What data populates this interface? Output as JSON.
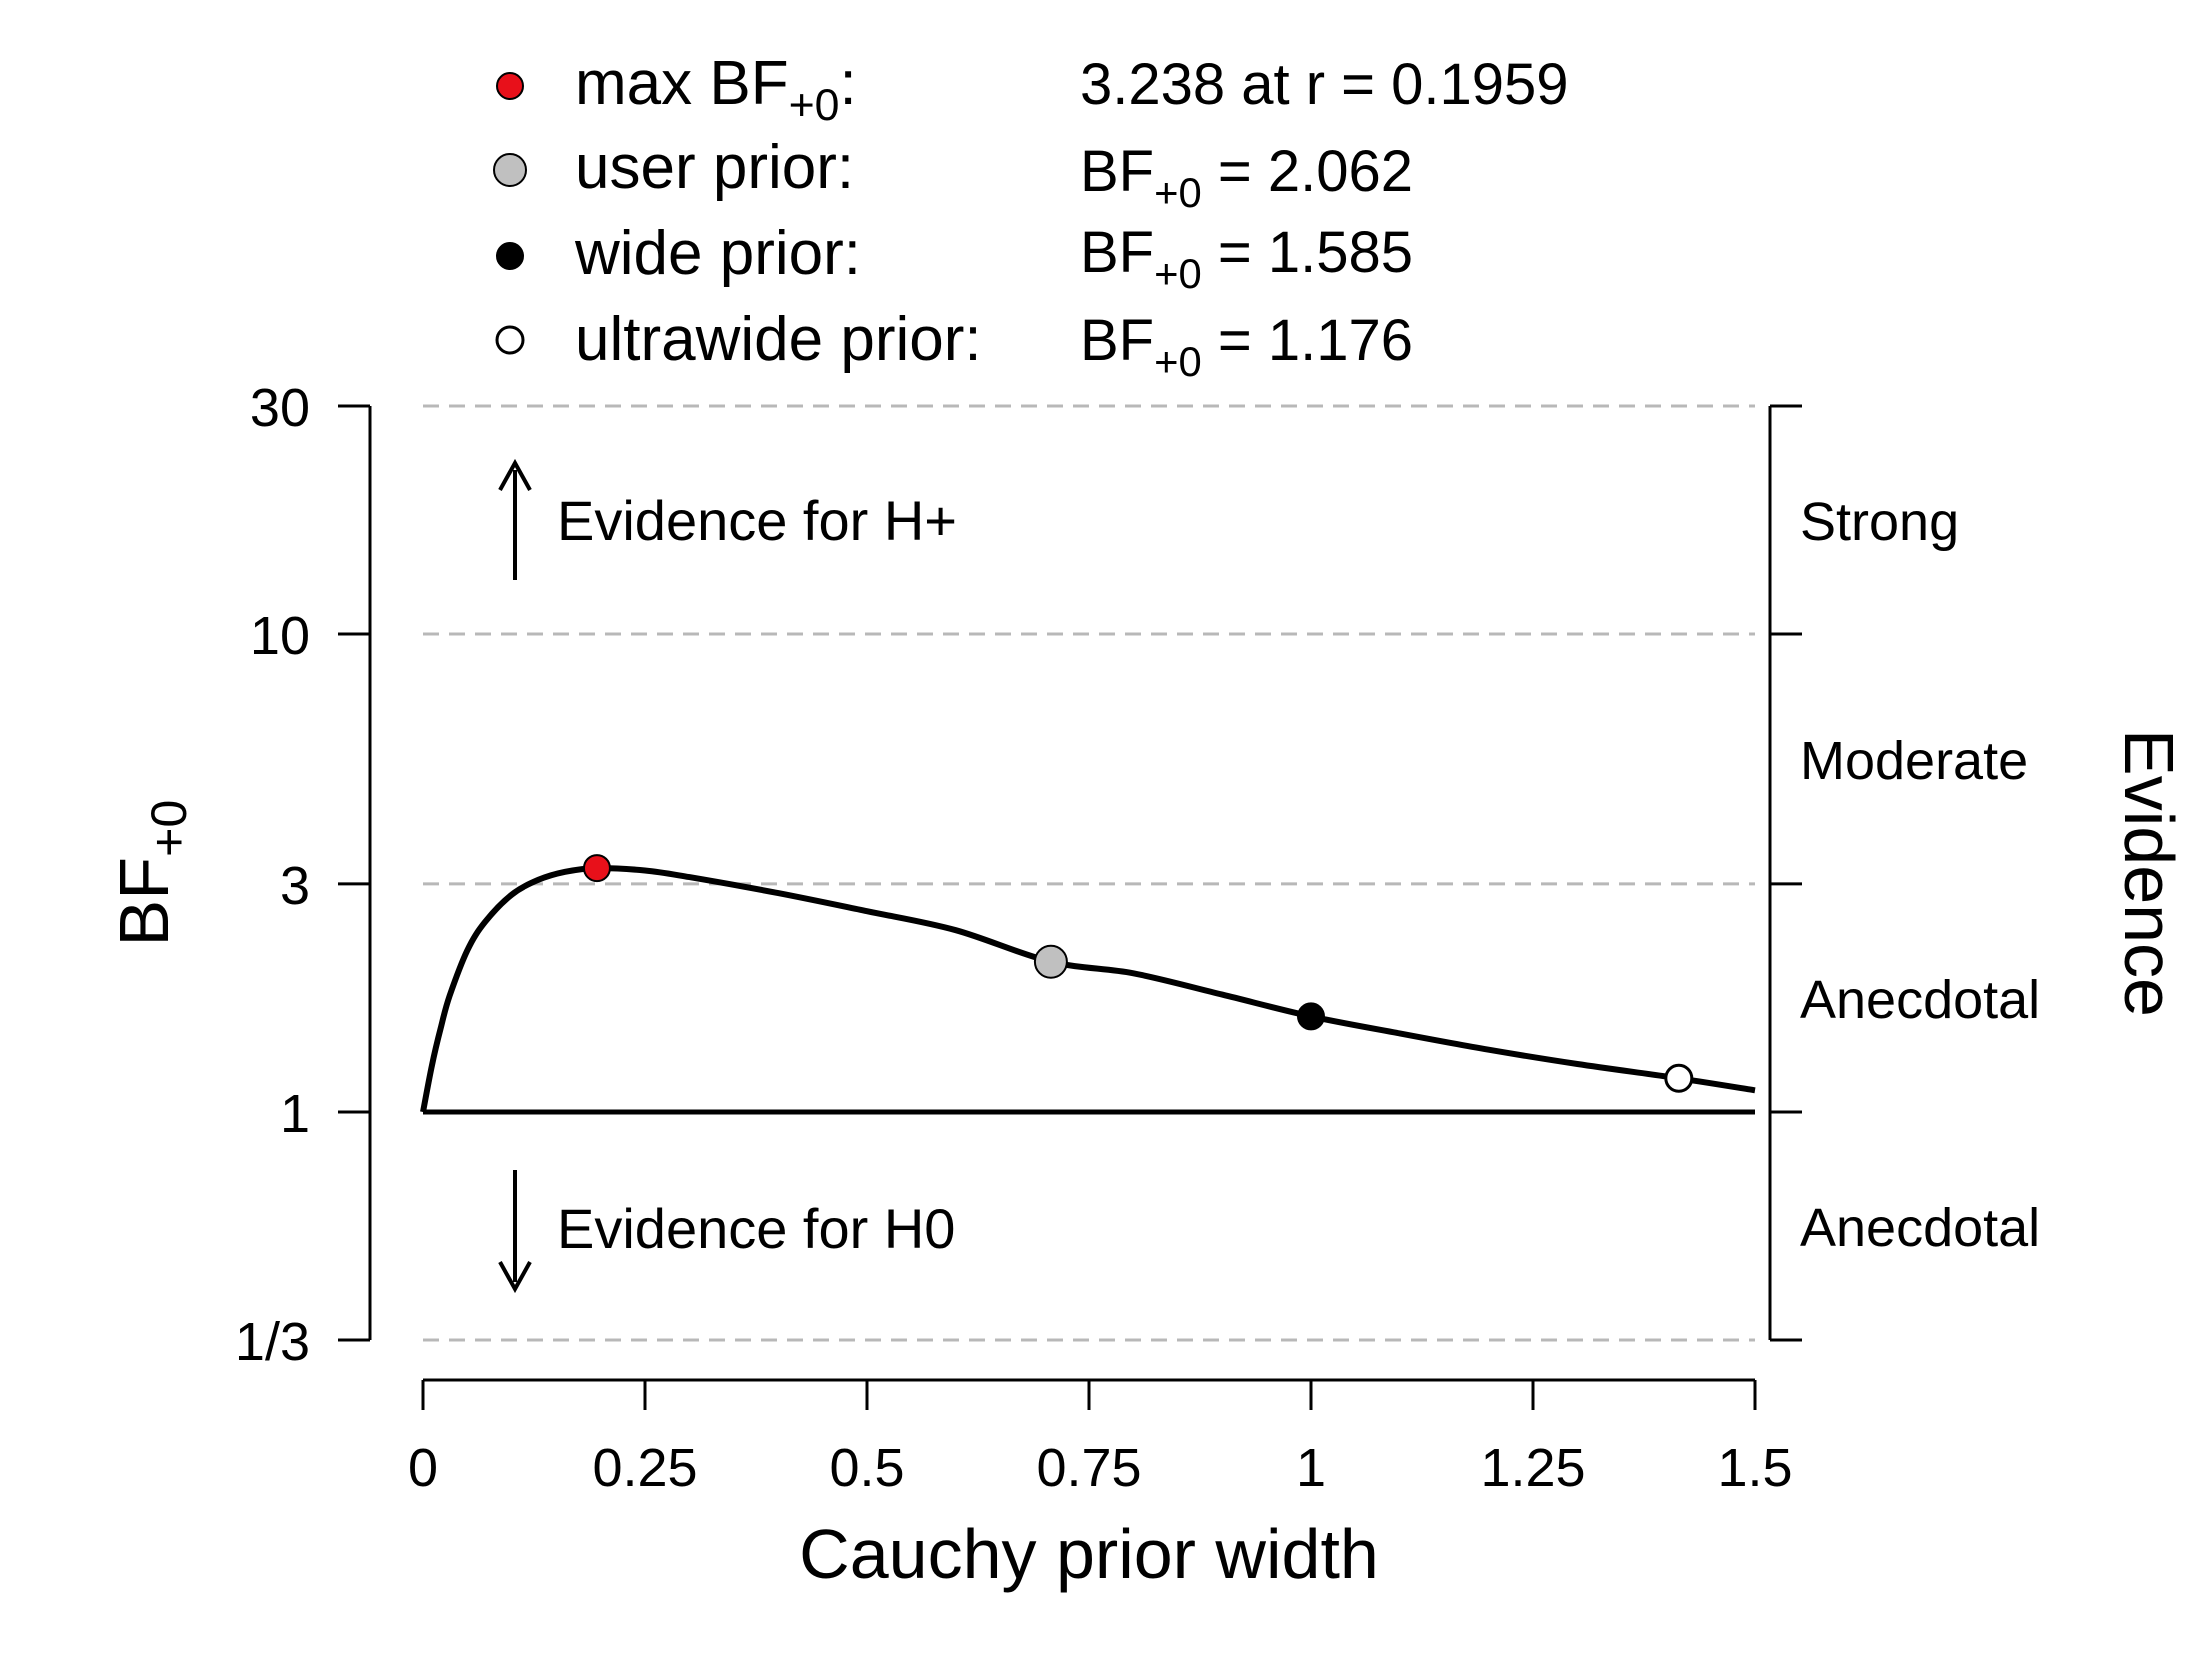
{
  "chart_data": {
    "type": "line",
    "title": "",
    "xlabel": "Cauchy prior width",
    "ylabel": {
      "base": "BF",
      "subscript": "+0"
    },
    "evidence_label": "Evidence",
    "y_scale": "log",
    "xlim": [
      0,
      1.5
    ],
    "ylim": [
      0.3333,
      30
    ],
    "x_ticks": [
      {
        "value": 0,
        "label": "0"
      },
      {
        "value": 0.25,
        "label": "0.25"
      },
      {
        "value": 0.5,
        "label": "0.5"
      },
      {
        "value": 0.75,
        "label": "0.75"
      },
      {
        "value": 1,
        "label": "1"
      },
      {
        "value": 1.25,
        "label": "1.25"
      },
      {
        "value": 1.5,
        "label": "1.5"
      }
    ],
    "y_ticks": [
      {
        "value": 30,
        "label": "30"
      },
      {
        "value": 10,
        "label": "10"
      },
      {
        "value": 3,
        "label": "3"
      },
      {
        "value": 1,
        "label": "1"
      },
      {
        "value": 0.3333,
        "label": "1/3"
      }
    ],
    "gridlines": "dashed at 30, 10, 3, 1/3",
    "evidence_categories": [
      {
        "label": "Strong",
        "range": [
          10,
          30
        ]
      },
      {
        "label": "Moderate",
        "range": [
          3,
          10
        ]
      },
      {
        "label": "Anecdotal",
        "range": [
          1,
          3
        ]
      },
      {
        "label": "Anecdotal",
        "range": [
          0.3333,
          1
        ]
      }
    ],
    "annotations": [
      {
        "text": "Evidence for H+",
        "direction": "up"
      },
      {
        "text": "Evidence for H0",
        "direction": "down"
      }
    ],
    "series": [
      {
        "x": [
          0.0,
          0.01,
          0.02,
          0.03,
          0.05,
          0.07,
          0.1,
          0.13,
          0.16,
          0.1959,
          0.25,
          0.3,
          0.4,
          0.5,
          0.6,
          0.7071,
          0.8,
          0.9,
          1.0,
          1.1,
          1.2,
          1.3,
          1.4142,
          1.5
        ],
        "y": [
          1.0,
          1.25,
          1.5,
          1.75,
          2.18,
          2.5,
          2.85,
          3.06,
          3.18,
          3.238,
          3.2,
          3.1,
          2.87,
          2.63,
          2.4,
          2.062,
          1.95,
          1.76,
          1.585,
          1.46,
          1.35,
          1.26,
          1.176,
          1.11
        ]
      }
    ],
    "points": [
      {
        "key": "max",
        "x": 0.1959,
        "y": 3.238,
        "fill": "#e8101a",
        "legend_label": "max BF",
        "legend_sub": "+0",
        "legend_suffix": ":",
        "legend_value": "3.238 at r = 0.1959"
      },
      {
        "key": "user",
        "x": 0.7071,
        "y": 2.062,
        "fill": "#c0c0c0",
        "legend_label": "user prior:",
        "legend_value_prefix": "BF",
        "legend_value_sub": "+0",
        "legend_value": " = 2.062"
      },
      {
        "key": "wide",
        "x": 1.0,
        "y": 1.585,
        "fill": "#000000",
        "legend_label": "wide prior:",
        "legend_value_prefix": "BF",
        "legend_value_sub": "+0",
        "legend_value": " = 1.585"
      },
      {
        "key": "ultrawide",
        "x": 1.4142,
        "y": 1.176,
        "fill": "#ffffff",
        "legend_label": "ultrawide prior:",
        "legend_value_prefix": "BF",
        "legend_value_sub": "+0",
        "legend_value": " = 1.176"
      }
    ]
  }
}
